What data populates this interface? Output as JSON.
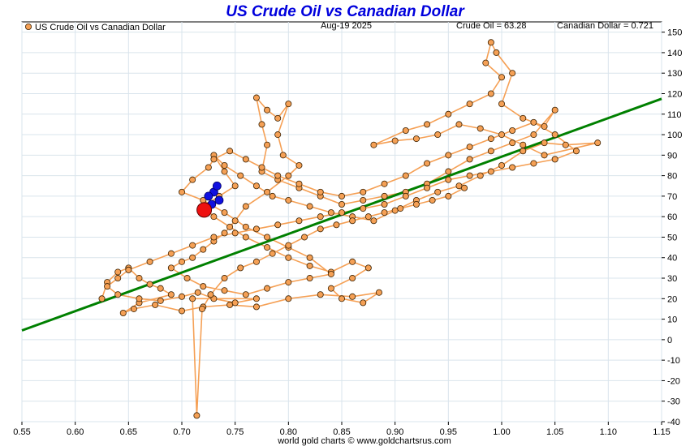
{
  "chart_data": {
    "type": "scatter",
    "title": "US Crude Oil vs Canadian Dollar",
    "date": "Aug-19  2025",
    "readouts": {
      "crude_oil": "Crude Oil = 63.28",
      "canadian_dollar": "Canadian Dollar = 0.721"
    },
    "legend": {
      "label": "US Crude Oil vs Canadian Dollar",
      "placement": "top-left"
    },
    "footer": "world gold charts © www.goldchartsrus.com",
    "xlim": [
      0.55,
      1.15
    ],
    "ylim": [
      -40,
      155
    ],
    "x_ticks": [
      0.55,
      0.6,
      0.65,
      0.7,
      0.75,
      0.8,
      0.85,
      0.9,
      0.95,
      1.0,
      1.05,
      1.1,
      1.15
    ],
    "x_tick_labels": [
      "0.55",
      "0.60",
      "0.65",
      "0.70",
      "0.75",
      "0.80",
      "0.85",
      "0.90",
      "0.95",
      "1.00",
      "1.05",
      "1.10",
      "1.15"
    ],
    "y_ticks": [
      -40,
      -30,
      -20,
      -10,
      0,
      10,
      20,
      30,
      40,
      50,
      60,
      70,
      80,
      90,
      100,
      110,
      120,
      130,
      140,
      150
    ],
    "y_tick_labels": [
      "-40",
      "-30",
      "-20",
      "-10",
      "0",
      "10",
      "20",
      "30",
      "40",
      "50",
      "60",
      "70",
      "80",
      "90",
      "100",
      "110",
      "120",
      "130",
      "140",
      "150"
    ],
    "grid": true,
    "colors": {
      "points": "#f5a055",
      "point_stroke": "#3a2000",
      "trail": "#f5a055",
      "recent": "#1010e0",
      "current": "#ee1010",
      "trend": "#008000",
      "title": "#0000dd"
    },
    "series": [
      {
        "name": "US Crude Oil vs Canadian Dollar",
        "points": [
          [
            0.625,
            20
          ],
          [
            0.63,
            28
          ],
          [
            0.64,
            33
          ],
          [
            0.65,
            35
          ],
          [
            0.66,
            30
          ],
          [
            0.67,
            27
          ],
          [
            0.68,
            25
          ],
          [
            0.69,
            22
          ],
          [
            0.66,
            18
          ],
          [
            0.645,
            13
          ],
          [
            0.655,
            15
          ],
          [
            0.675,
            17
          ],
          [
            0.7,
            14
          ],
          [
            0.72,
            16
          ],
          [
            0.745,
            17
          ],
          [
            0.77,
            16
          ],
          [
            0.8,
            20
          ],
          [
            0.83,
            22
          ],
          [
            0.86,
            21
          ],
          [
            0.885,
            23
          ],
          [
            0.87,
            18
          ],
          [
            0.85,
            20
          ],
          [
            0.84,
            25
          ],
          [
            0.86,
            30
          ],
          [
            0.875,
            35
          ],
          [
            0.86,
            38
          ],
          [
            0.84,
            33
          ],
          [
            0.82,
            36
          ],
          [
            0.8,
            40
          ],
          [
            0.78,
            45
          ],
          [
            0.76,
            50
          ],
          [
            0.745,
            55
          ],
          [
            0.73,
            60
          ],
          [
            0.72,
            65
          ],
          [
            0.735,
            70
          ],
          [
            0.75,
            75
          ],
          [
            0.74,
            82
          ],
          [
            0.73,
            90
          ],
          [
            0.74,
            85
          ],
          [
            0.755,
            80
          ],
          [
            0.77,
            75
          ],
          [
            0.785,
            70
          ],
          [
            0.8,
            68
          ],
          [
            0.82,
            65
          ],
          [
            0.84,
            62
          ],
          [
            0.86,
            60
          ],
          [
            0.88,
            58
          ],
          [
            0.9,
            63
          ],
          [
            0.92,
            68
          ],
          [
            0.94,
            72
          ],
          [
            0.96,
            75
          ],
          [
            0.98,
            80
          ],
          [
            1.0,
            85
          ],
          [
            1.02,
            92
          ],
          [
            1.04,
            96
          ],
          [
            1.06,
            95
          ],
          [
            1.09,
            96
          ],
          [
            1.04,
            90
          ],
          [
            1.02,
            95
          ],
          [
            1.0,
            100
          ],
          [
            0.98,
            103
          ],
          [
            0.96,
            105
          ],
          [
            0.94,
            100
          ],
          [
            0.92,
            98
          ],
          [
            0.9,
            97
          ],
          [
            0.88,
            95
          ],
          [
            0.91,
            102
          ],
          [
            0.93,
            105
          ],
          [
            0.95,
            110
          ],
          [
            0.97,
            115
          ],
          [
            0.99,
            120
          ],
          [
            1.0,
            128
          ],
          [
            0.985,
            135
          ],
          [
            0.99,
            145
          ],
          [
            0.995,
            140
          ],
          [
            1.01,
            130
          ],
          [
            1.0,
            115
          ],
          [
            1.02,
            108
          ],
          [
            1.04,
            104
          ],
          [
            1.05,
            112
          ],
          [
            1.03,
            100
          ],
          [
            1.01,
            96
          ],
          [
            0.99,
            92
          ],
          [
            0.97,
            88
          ],
          [
            0.95,
            82
          ],
          [
            0.93,
            76
          ],
          [
            0.91,
            72
          ],
          [
            0.89,
            70
          ],
          [
            0.87,
            68
          ],
          [
            0.85,
            66
          ],
          [
            0.83,
            70
          ],
          [
            0.81,
            74
          ],
          [
            0.79,
            78
          ],
          [
            0.775,
            82
          ],
          [
            0.78,
            95
          ],
          [
            0.775,
            105
          ],
          [
            0.77,
            118
          ],
          [
            0.78,
            112
          ],
          [
            0.79,
            108
          ],
          [
            0.8,
            115
          ],
          [
            0.79,
            100
          ],
          [
            0.795,
            90
          ],
          [
            0.81,
            85
          ],
          [
            0.8,
            80
          ],
          [
            0.78,
            72
          ],
          [
            0.76,
            65
          ],
          [
            0.75,
            58
          ],
          [
            0.74,
            52
          ],
          [
            0.73,
            48
          ],
          [
            0.72,
            44
          ],
          [
            0.71,
            40
          ],
          [
            0.7,
            38
          ],
          [
            0.69,
            35
          ],
          [
            0.705,
            30
          ],
          [
            0.72,
            26
          ],
          [
            0.74,
            24
          ],
          [
            0.76,
            22
          ],
          [
            0.78,
            25
          ],
          [
            0.8,
            28
          ],
          [
            0.82,
            30
          ],
          [
            0.84,
            32
          ],
          [
            0.82,
            40
          ],
          [
            0.8,
            45
          ],
          [
            0.78,
            50
          ],
          [
            0.76,
            55
          ],
          [
            0.74,
            62
          ],
          [
            0.72,
            68
          ],
          [
            0.7,
            72
          ],
          [
            0.71,
            78
          ],
          [
            0.725,
            84
          ],
          [
            0.73,
            88
          ],
          [
            0.745,
            92
          ],
          [
            0.76,
            88
          ],
          [
            0.775,
            84
          ],
          [
            0.79,
            80
          ],
          [
            0.81,
            76
          ],
          [
            0.83,
            72
          ],
          [
            0.85,
            70
          ],
          [
            0.87,
            72
          ],
          [
            0.89,
            76
          ],
          [
            0.91,
            80
          ],
          [
            0.93,
            86
          ],
          [
            0.95,
            90
          ],
          [
            0.97,
            94
          ],
          [
            0.99,
            98
          ],
          [
            1.01,
            102
          ],
          [
            1.03,
            106
          ],
          [
            1.05,
            100
          ],
          [
            1.07,
            92
          ],
          [
            1.05,
            88
          ],
          [
            1.03,
            86
          ],
          [
            1.01,
            84
          ],
          [
            0.99,
            82
          ],
          [
            0.97,
            80
          ],
          [
            0.95,
            78
          ],
          [
            0.93,
            74
          ],
          [
            0.91,
            70
          ],
          [
            0.89,
            66
          ],
          [
            0.87,
            64
          ],
          [
            0.85,
            62
          ],
          [
            0.83,
            60
          ],
          [
            0.81,
            58
          ],
          [
            0.79,
            56
          ],
          [
            0.77,
            54
          ],
          [
            0.75,
            52
          ],
          [
            0.73,
            50
          ],
          [
            0.71,
            46
          ],
          [
            0.69,
            42
          ],
          [
            0.67,
            38
          ],
          [
            0.65,
            34
          ],
          [
            0.64,
            30
          ],
          [
            0.63,
            26
          ],
          [
            0.64,
            22
          ],
          [
            0.66,
            20
          ],
          [
            0.68,
            19
          ],
          [
            0.7,
            21
          ],
          [
            0.715,
            23
          ],
          [
            0.73,
            20
          ],
          [
            0.75,
            18
          ],
          [
            0.77,
            20
          ],
          [
            0.71,
            20
          ],
          [
            0.714,
            -37
          ],
          [
            0.719,
            15
          ],
          [
            0.727,
            22
          ],
          [
            0.74,
            30
          ],
          [
            0.755,
            35
          ],
          [
            0.77,
            38
          ],
          [
            0.785,
            42
          ],
          [
            0.8,
            46
          ],
          [
            0.815,
            50
          ],
          [
            0.83,
            54
          ],
          [
            0.845,
            56
          ],
          [
            0.86,
            58
          ],
          [
            0.875,
            60
          ],
          [
            0.89,
            62
          ],
          [
            0.905,
            64
          ],
          [
            0.92,
            66
          ],
          [
            0.935,
            68
          ],
          [
            0.95,
            70
          ],
          [
            0.965,
            74
          ]
        ]
      }
    ],
    "recent_points": [
      [
        0.73,
        72
      ],
      [
        0.735,
        68
      ],
      [
        0.725,
        70
      ],
      [
        0.728,
        66
      ],
      [
        0.733,
        75
      ]
    ],
    "current_point": [
      0.721,
      63.28
    ],
    "trend_line": [
      [
        0.55,
        4.5
      ],
      [
        1.15,
        117.5
      ]
    ]
  }
}
